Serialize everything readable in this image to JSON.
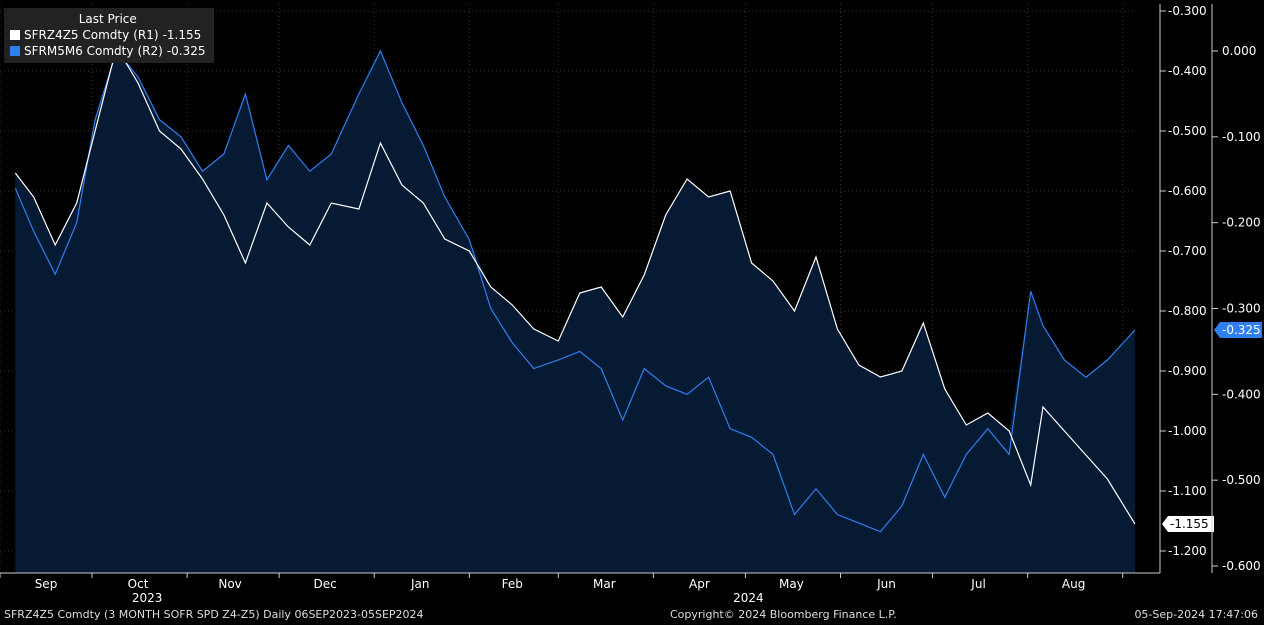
{
  "legend": {
    "header": "Last Price",
    "items": [
      {
        "ticker": "SFRZ4Z5 Comdty",
        "axis": "(R1)",
        "last": "-1.155",
        "color": "#ffffff"
      },
      {
        "ticker": "SFRM5M6 Comdty",
        "axis": "(R2)",
        "last": "-0.325",
        "color": "#2f7ff0"
      }
    ]
  },
  "footer": {
    "left": "SFRZ4Z5 Comdty (3 MONTH SOFR SPD  Z4-Z5)  Daily 06SEP2023-05SEP2024",
    "center": "Copyright© 2024 Bloomberg Finance L.P.",
    "right": "05-Sep-2024 17:47:06"
  },
  "colors": {
    "background": "#000000",
    "area_fill": "#061a33",
    "series1": "#ffffff",
    "series2": "#2f7ff0"
  },
  "chart_data": {
    "type": "line",
    "x_months": [
      "Sep",
      "Oct",
      "Nov",
      "Dec",
      "Jan",
      "Feb",
      "Mar",
      "Apr",
      "May",
      "Jun",
      "Jul",
      "Aug"
    ],
    "x_years": [
      "2023",
      "2024"
    ],
    "axis_r1": {
      "ticks": [
        "-0.300",
        "-0.400",
        "-0.500",
        "-0.600",
        "-0.700",
        "-0.800",
        "-0.900",
        "-1.000",
        "-1.100",
        "-1.200"
      ],
      "ylim": [
        -1.22,
        -0.28
      ]
    },
    "axis_r2": {
      "ticks": [
        "0.000",
        "-0.100",
        "-0.200",
        "-0.300",
        "-0.400",
        "-0.500",
        "-0.600"
      ],
      "ylim": [
        -0.61,
        0.05
      ]
    },
    "series": [
      {
        "name": "SFRZ4Z5 Comdty",
        "axis": "R1",
        "last_label": "-1.155",
        "points": [
          [
            "2023-09-06",
            -0.57
          ],
          [
            "2023-09-12",
            -0.61
          ],
          [
            "2023-09-19",
            -0.69
          ],
          [
            "2023-09-26",
            -0.62
          ],
          [
            "2023-10-02",
            -0.5
          ],
          [
            "2023-10-09",
            -0.36
          ],
          [
            "2023-10-16",
            -0.42
          ],
          [
            "2023-10-23",
            -0.5
          ],
          [
            "2023-10-30",
            -0.53
          ],
          [
            "2023-11-06",
            -0.58
          ],
          [
            "2023-11-13",
            -0.64
          ],
          [
            "2023-11-20",
            -0.72
          ],
          [
            "2023-11-27",
            -0.62
          ],
          [
            "2023-12-04",
            -0.66
          ],
          [
            "2023-12-11",
            -0.69
          ],
          [
            "2023-12-18",
            -0.62
          ],
          [
            "2023-12-27",
            -0.63
          ],
          [
            "2024-01-03",
            -0.52
          ],
          [
            "2024-01-10",
            -0.59
          ],
          [
            "2024-01-17",
            -0.62
          ],
          [
            "2024-01-24",
            -0.68
          ],
          [
            "2024-02-01",
            -0.7
          ],
          [
            "2024-02-08",
            -0.76
          ],
          [
            "2024-02-15",
            -0.79
          ],
          [
            "2024-02-22",
            -0.83
          ],
          [
            "2024-03-01",
            -0.85
          ],
          [
            "2024-03-08",
            -0.77
          ],
          [
            "2024-03-15",
            -0.76
          ],
          [
            "2024-03-22",
            -0.81
          ],
          [
            "2024-03-29",
            -0.74
          ],
          [
            "2024-04-05",
            -0.64
          ],
          [
            "2024-04-12",
            -0.58
          ],
          [
            "2024-04-19",
            -0.61
          ],
          [
            "2024-04-26",
            -0.6
          ],
          [
            "2024-05-03",
            -0.72
          ],
          [
            "2024-05-10",
            -0.75
          ],
          [
            "2024-05-17",
            -0.8
          ],
          [
            "2024-05-24",
            -0.71
          ],
          [
            "2024-05-31",
            -0.83
          ],
          [
            "2024-06-07",
            -0.89
          ],
          [
            "2024-06-14",
            -0.91
          ],
          [
            "2024-06-21",
            -0.9
          ],
          [
            "2024-06-28",
            -0.82
          ],
          [
            "2024-07-05",
            -0.93
          ],
          [
            "2024-07-12",
            -0.99
          ],
          [
            "2024-07-19",
            -0.97
          ],
          [
            "2024-07-26",
            -1.0
          ],
          [
            "2024-08-02",
            -1.09
          ],
          [
            "2024-08-06",
            -0.96
          ],
          [
            "2024-08-13",
            -1.0
          ],
          [
            "2024-08-20",
            -1.04
          ],
          [
            "2024-08-27",
            -1.08
          ],
          [
            "2024-09-05",
            -1.155
          ]
        ]
      },
      {
        "name": "SFRM5M6 Comdty",
        "axis": "R2",
        "last_label": "-0.325",
        "points": [
          [
            "2023-09-06",
            -0.16
          ],
          [
            "2023-09-12",
            -0.21
          ],
          [
            "2023-09-19",
            -0.26
          ],
          [
            "2023-09-26",
            -0.2
          ],
          [
            "2023-10-02",
            -0.08
          ],
          [
            "2023-10-09",
            0.0
          ],
          [
            "2023-10-16",
            -0.03
          ],
          [
            "2023-10-23",
            -0.08
          ],
          [
            "2023-10-30",
            -0.1
          ],
          [
            "2023-11-06",
            -0.14
          ],
          [
            "2023-11-13",
            -0.12
          ],
          [
            "2023-11-20",
            -0.05
          ],
          [
            "2023-11-27",
            -0.15
          ],
          [
            "2023-12-04",
            -0.11
          ],
          [
            "2023-12-11",
            -0.14
          ],
          [
            "2023-12-18",
            -0.12
          ],
          [
            "2023-12-27",
            -0.05
          ],
          [
            "2024-01-03",
            0.0
          ],
          [
            "2024-01-10",
            -0.06
          ],
          [
            "2024-01-17",
            -0.11
          ],
          [
            "2024-01-24",
            -0.17
          ],
          [
            "2024-02-01",
            -0.22
          ],
          [
            "2024-02-08",
            -0.3
          ],
          [
            "2024-02-15",
            -0.34
          ],
          [
            "2024-02-22",
            -0.37
          ],
          [
            "2024-03-01",
            -0.36
          ],
          [
            "2024-03-08",
            -0.35
          ],
          [
            "2024-03-15",
            -0.37
          ],
          [
            "2024-03-22",
            -0.43
          ],
          [
            "2024-03-29",
            -0.37
          ],
          [
            "2024-04-05",
            -0.39
          ],
          [
            "2024-04-12",
            -0.4
          ],
          [
            "2024-04-19",
            -0.38
          ],
          [
            "2024-04-26",
            -0.44
          ],
          [
            "2024-05-03",
            -0.45
          ],
          [
            "2024-05-10",
            -0.47
          ],
          [
            "2024-05-17",
            -0.54
          ],
          [
            "2024-05-24",
            -0.51
          ],
          [
            "2024-05-31",
            -0.54
          ],
          [
            "2024-06-07",
            -0.55
          ],
          [
            "2024-06-14",
            -0.56
          ],
          [
            "2024-06-21",
            -0.53
          ],
          [
            "2024-06-28",
            -0.47
          ],
          [
            "2024-07-05",
            -0.52
          ],
          [
            "2024-07-12",
            -0.47
          ],
          [
            "2024-07-19",
            -0.44
          ],
          [
            "2024-07-26",
            -0.47
          ],
          [
            "2024-08-02",
            -0.28
          ],
          [
            "2024-08-06",
            -0.32
          ],
          [
            "2024-08-13",
            -0.36
          ],
          [
            "2024-08-20",
            -0.38
          ],
          [
            "2024-08-27",
            -0.36
          ],
          [
            "2024-09-05",
            -0.325
          ]
        ]
      }
    ],
    "grid": true
  }
}
